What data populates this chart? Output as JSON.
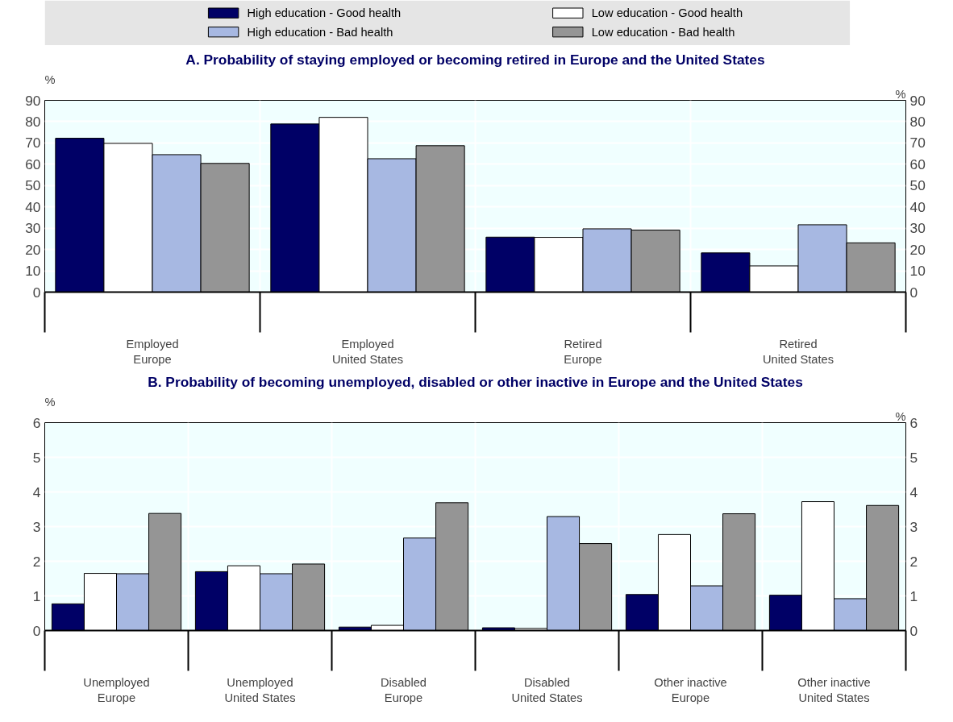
{
  "chart_data": [
    {
      "type": "bar",
      "title": "A. Probability of staying employed or becoming retired in Europe and the United States",
      "ylabel": "%",
      "y2label": "%",
      "categories": [
        "Employed\nEurope",
        "Employed\nUnited States",
        "Retired\nEurope",
        "Retired\nUnited States"
      ],
      "series": [
        {
          "name": "High education - Good health",
          "color": "#000066",
          "values": [
            72.2,
            78.9,
            25.8,
            18.4
          ]
        },
        {
          "name": "Low education - Good health",
          "color": "#ffffff",
          "values": [
            69.8,
            82.0,
            25.7,
            12.3
          ]
        },
        {
          "name": "High education - Bad health",
          "color": "#a7b8e2",
          "values": [
            64.5,
            62.6,
            29.7,
            31.6
          ]
        },
        {
          "name": "Low education - Bad health",
          "color": "#959595",
          "values": [
            60.4,
            68.7,
            29.1,
            23.1
          ]
        }
      ],
      "ylim": [
        0,
        90
      ],
      "yticks": [
        0,
        10,
        20,
        30,
        40,
        50,
        60,
        70,
        80,
        90
      ],
      "y2lim": [
        0,
        90
      ],
      "y2ticks": [
        0,
        10,
        20,
        30,
        40,
        50,
        60,
        70,
        80,
        90
      ],
      "grid": true,
      "legend": "top"
    },
    {
      "type": "bar",
      "title": "B. Probability of becoming unemployed, disabled or other inactive in Europe and the United States",
      "ylabel": "%",
      "y2label": "%",
      "categories": [
        "Unemployed\nEurope",
        "Unemployed\nUnited States",
        "Disabled\nEurope",
        "Disabled\nUnited States",
        "Other inactive\nEurope",
        "Other inactive\nUnited States"
      ],
      "series": [
        {
          "color": "#000066",
          "values": [
            0.77,
            1.7,
            0.1,
            0.08,
            1.04,
            1.02
          ]
        },
        {
          "color": "#ffffff",
          "values": [
            1.65,
            1.87,
            0.15,
            0.06,
            2.77,
            3.72
          ]
        },
        {
          "color": "#a7b8e2",
          "values": [
            1.64,
            1.64,
            2.67,
            3.29,
            1.29,
            0.92
          ]
        },
        {
          "color": "#959595",
          "values": [
            3.38,
            1.92,
            3.69,
            2.51,
            3.37,
            3.61
          ]
        }
      ],
      "ylim": [
        0,
        6
      ],
      "yticks": [
        0,
        1,
        2,
        3,
        4,
        5,
        6
      ],
      "y2lim": [
        0,
        6
      ],
      "y2ticks": [
        0,
        1,
        2,
        3,
        4,
        5,
        6
      ],
      "grid": true,
      "legend": false
    }
  ]
}
